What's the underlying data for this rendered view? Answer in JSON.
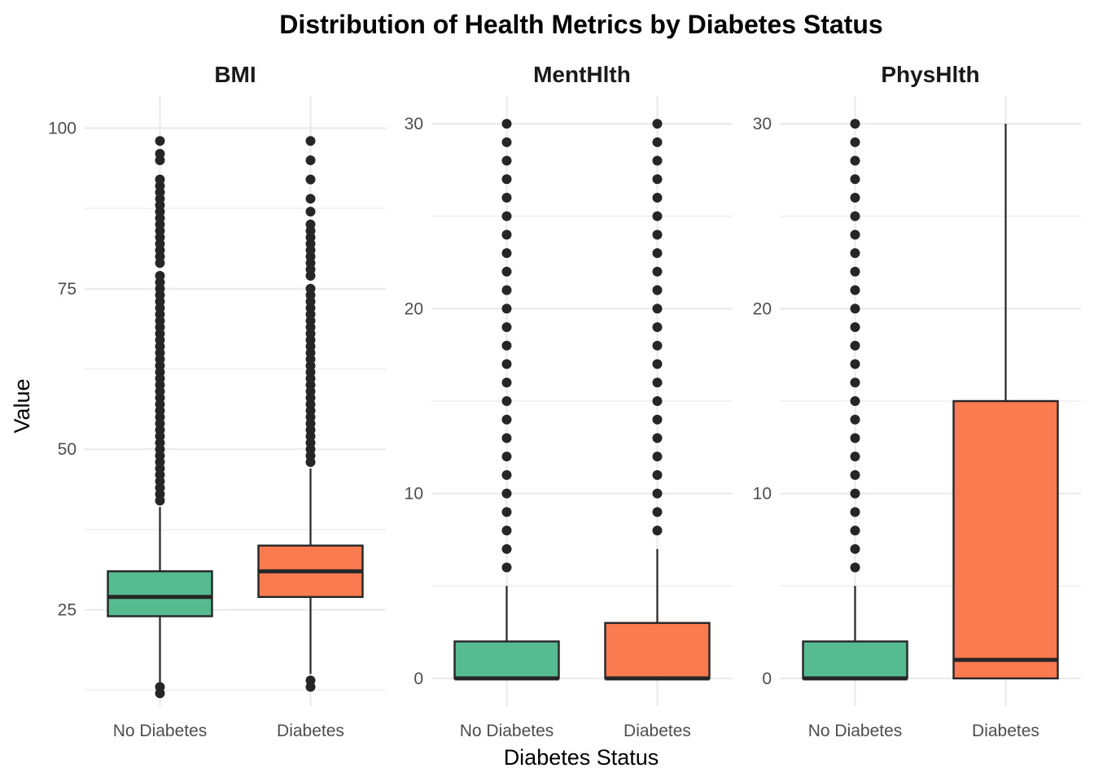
{
  "title": "Distribution of Health Metrics by Diabetes Status",
  "xlabel": "Diabetes Status",
  "ylabel": "Value",
  "colors": {
    "No Diabetes": "#57BB92",
    "Diabetes": "#F97B4F",
    "outline": "#262626",
    "grid": "#ebebeb"
  },
  "chart_data": {
    "type": "boxplot",
    "categories": [
      "No Diabetes",
      "Diabetes"
    ],
    "panels": [
      {
        "name": "BMI",
        "ylim": [
          10,
          105
        ],
        "y_ticks": [
          25,
          50,
          75,
          100
        ],
        "y_tick_labels": [
          "25",
          "50",
          "75",
          "100"
        ],
        "minor_ticks": [
          12.5,
          37.5,
          62.5,
          87.5
        ],
        "boxes": [
          {
            "category": "No Diabetes",
            "q1": 24,
            "median": 27,
            "q3": 31,
            "whisker_low": 13,
            "whisker_high": 41,
            "outliers": [
              12,
              13,
              42,
              43,
              44,
              45,
              46,
              47,
              48,
              49,
              50,
              51,
              52,
              53,
              54,
              55,
              56,
              57,
              58,
              59,
              60,
              61,
              62,
              63,
              64,
              65,
              66,
              67,
              68,
              69,
              70,
              71,
              72,
              73,
              74,
              75,
              76,
              77,
              79,
              80,
              81,
              82,
              83,
              84,
              85,
              86,
              87,
              88,
              89,
              90,
              91,
              92,
              95,
              96,
              98
            ]
          },
          {
            "category": "Diabetes",
            "q1": 27,
            "median": 31,
            "q3": 35,
            "whisker_low": 15,
            "whisker_high": 47,
            "outliers": [
              13,
              14,
              48,
              49,
              50,
              51,
              52,
              53,
              54,
              55,
              56,
              57,
              58,
              59,
              60,
              61,
              62,
              63,
              64,
              65,
              66,
              67,
              68,
              69,
              70,
              71,
              72,
              73,
              74,
              75,
              77,
              78,
              79,
              80,
              81,
              82,
              83,
              84,
              85,
              87,
              89,
              92,
              95,
              98
            ]
          }
        ]
      },
      {
        "name": "MentHlth",
        "ylim": [
          -1.5,
          31.5
        ],
        "y_ticks": [
          0,
          10,
          20,
          30
        ],
        "y_tick_labels": [
          "0",
          "10",
          "20",
          "30"
        ],
        "minor_ticks": [
          5,
          15,
          25
        ],
        "boxes": [
          {
            "category": "No Diabetes",
            "q1": 0,
            "median": 0,
            "q3": 2,
            "whisker_low": 0,
            "whisker_high": 5,
            "outliers": [
              6,
              7,
              8,
              9,
              10,
              11,
              12,
              13,
              14,
              15,
              16,
              17,
              18,
              19,
              20,
              21,
              22,
              23,
              24,
              25,
              26,
              27,
              28,
              29,
              30
            ]
          },
          {
            "category": "Diabetes",
            "q1": 0,
            "median": 0,
            "q3": 3,
            "whisker_low": 0,
            "whisker_high": 7,
            "outliers": [
              8,
              9,
              10,
              11,
              12,
              13,
              14,
              15,
              16,
              17,
              18,
              19,
              20,
              21,
              22,
              23,
              24,
              25,
              26,
              27,
              28,
              29,
              30
            ]
          }
        ]
      },
      {
        "name": "PhysHlth",
        "ylim": [
          -1.5,
          31.5
        ],
        "y_ticks": [
          0,
          10,
          20,
          30
        ],
        "y_tick_labels": [
          "0",
          "10",
          "20",
          "30"
        ],
        "minor_ticks": [
          5,
          15,
          25
        ],
        "boxes": [
          {
            "category": "No Diabetes",
            "q1": 0,
            "median": 0,
            "q3": 2,
            "whisker_low": 0,
            "whisker_high": 5,
            "outliers": [
              6,
              7,
              8,
              9,
              10,
              11,
              12,
              13,
              14,
              15,
              16,
              17,
              18,
              19,
              20,
              21,
              22,
              23,
              24,
              25,
              26,
              27,
              28,
              29,
              30
            ]
          },
          {
            "category": "Diabetes",
            "q1": 0,
            "median": 1,
            "q3": 15,
            "whisker_low": 0,
            "whisker_high": 30,
            "outliers": []
          }
        ]
      }
    ],
    "grid": true,
    "legend": "none"
  }
}
